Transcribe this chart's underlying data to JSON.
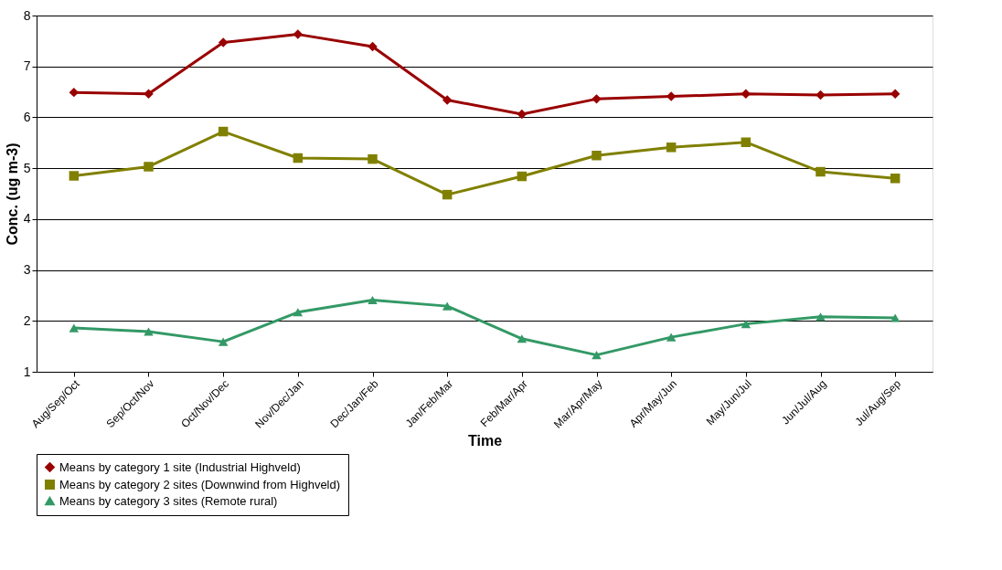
{
  "chart_data": {
    "type": "line",
    "xlabel": "Time",
    "ylabel": "Conc. (ug m-3)",
    "categories": [
      "Aug/Sep/Oct",
      "Sep/Oct/Nov",
      "Oct/Nov/Dec",
      "Nov/Dec/Jan",
      "Dec/Jan/Feb",
      "Jan/Feb/Mar",
      "Feb/Mar/Apr",
      "Mar/Apr/May",
      "Apr/May/Jun",
      "May/Jun/Jul",
      "Jun/Jul/Aug",
      "Jul/Aug/Sep"
    ],
    "series": [
      {
        "name": "Means by category 1 site (Industrial Highveld)",
        "color": "#990000",
        "marker": "diamond",
        "values": [
          6.49,
          6.46,
          7.47,
          7.63,
          7.39,
          6.34,
          6.06,
          6.36,
          6.41,
          6.46,
          6.44,
          6.46
        ]
      },
      {
        "name": "Means by category 2 sites (Downwind from Highveld)",
        "color": "#808000",
        "marker": "square",
        "values": [
          4.85,
          5.03,
          5.72,
          5.2,
          5.18,
          4.48,
          4.84,
          5.25,
          5.41,
          5.51,
          4.93,
          4.8
        ]
      },
      {
        "name": "Means by category 3 sites (Remote rural)",
        "color": "#339966",
        "marker": "triangle",
        "values": [
          1.86,
          1.79,
          1.59,
          2.17,
          2.41,
          2.29,
          1.65,
          1.33,
          1.68,
          1.94,
          2.08,
          2.06
        ]
      }
    ],
    "ylim": [
      1,
      8
    ],
    "yticks": [
      1,
      2,
      3,
      4,
      5,
      6,
      7,
      8
    ],
    "grid": "y",
    "legend": "bottom",
    "line_style": "solid"
  }
}
